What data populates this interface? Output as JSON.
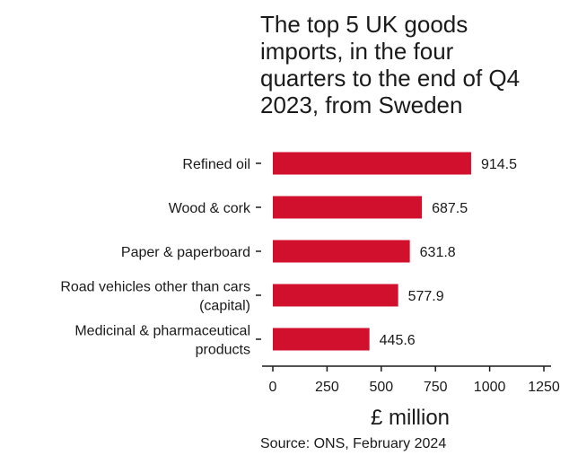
{
  "title_lines": [
    "The top 5 UK goods",
    "imports, in the four",
    "quarters to the end of Q4",
    "2023, from Sweden"
  ],
  "source": "Source: ONS, February 2024",
  "colors": {
    "bar": "#d0102c",
    "text": "#1a1a1a",
    "axis": "#1a1a1a"
  },
  "chart_data": {
    "type": "bar",
    "orientation": "horizontal",
    "categories": [
      [
        "Refined oil"
      ],
      [
        "Wood & cork"
      ],
      [
        "Paper & paperboard"
      ],
      [
        "Road vehicles other than cars",
        "(capital)"
      ],
      [
        "Medicinal & pharmaceutical",
        "products"
      ]
    ],
    "values": [
      914.5,
      687.5,
      631.8,
      577.9,
      445.6
    ],
    "value_labels": [
      "914.5",
      "687.5",
      "631.8",
      "577.9",
      "445.6"
    ],
    "xlabel": "£ million",
    "xlim": [
      0,
      1250
    ],
    "xticks": [
      0,
      250,
      500,
      750,
      1000,
      1250
    ],
    "xtick_labels": [
      "0",
      "250",
      "500",
      "750",
      "1000",
      "1250"
    ],
    "grid": false
  }
}
